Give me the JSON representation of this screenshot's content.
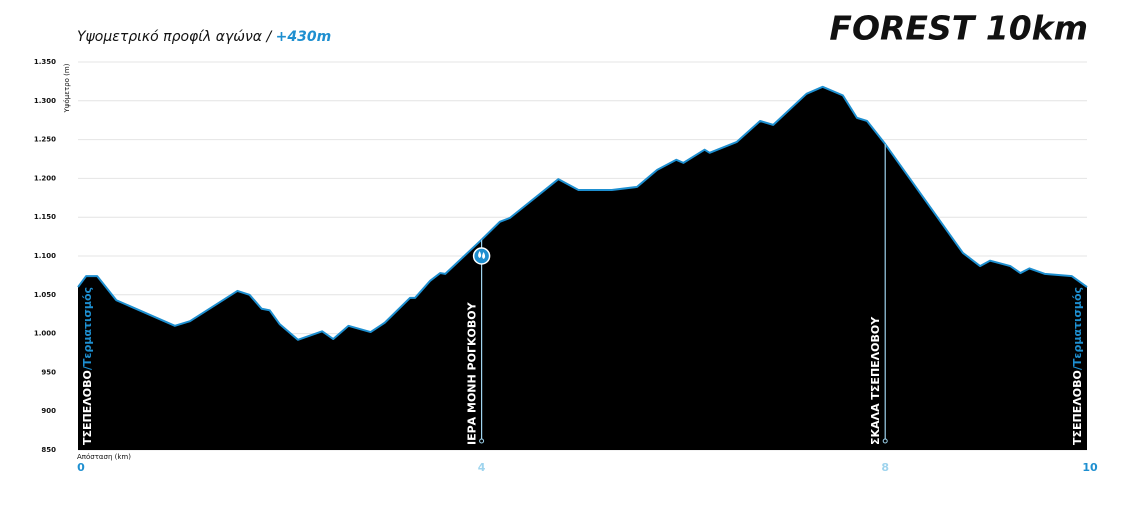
{
  "chart_data": {
    "type": "area",
    "title": "FOREST 10km",
    "subtitle": "Υψομετρικό προφίλ αγώνα / ",
    "subtitle_highlight": "+430m",
    "y_label": "Υψόμετρο (m)",
    "x_label": "Απόσταση (km)",
    "color": "#1e8fd0",
    "fill": "#000000",
    "grid": true,
    "xlim": [
      0,
      10
    ],
    "xticks": [
      0,
      4,
      8,
      10
    ],
    "ylim": [
      850,
      1350
    ],
    "yticks": [
      850,
      900,
      950,
      {
        "value": 1000,
        "label": "1.000"
      },
      {
        "value": 1050,
        "label": "1.050"
      },
      {
        "value": 1100,
        "label": "1.100"
      },
      {
        "value": 1150,
        "label": "1.150"
      },
      {
        "value": 1200,
        "label": "1.200"
      },
      {
        "value": 1250,
        "label": "1.250"
      },
      {
        "value": 1300,
        "label": "1.300"
      },
      {
        "value": 1350,
        "label": "1.350"
      }
    ],
    "x": [
      0,
      0.08,
      0.19,
      0.38,
      0.96,
      1.11,
      1.58,
      1.7,
      1.82,
      1.9,
      2.0,
      2.18,
      2.42,
      2.53,
      2.68,
      2.9,
      3.04,
      3.29,
      3.34,
      3.49,
      3.59,
      3.64,
      4.0,
      4.18,
      4.28,
      4.76,
      4.96,
      5.29,
      5.54,
      5.74,
      5.93,
      6.0,
      6.21,
      6.26,
      6.53,
      6.76,
      6.89,
      7.22,
      7.38,
      7.58,
      7.72,
      7.82,
      7.99,
      8.77,
      8.94,
      9.04,
      9.24,
      9.34,
      9.43,
      9.58,
      9.85,
      10
    ],
    "values": [
      1060,
      1074,
      1074,
      1043,
      1010,
      1016,
      1055,
      1050,
      1032,
      1030,
      1012,
      992,
      1003,
      993,
      1010,
      1002,
      1014,
      1046,
      1046,
      1068,
      1078,
      1077,
      1121,
      1144,
      1149,
      1199,
      1185,
      1185,
      1189,
      1211,
      1224,
      1220,
      1237,
      1233,
      1247,
      1274,
      1269,
      1309,
      1318,
      1307,
      1278,
      1274,
      1246,
      1104,
      1087,
      1094,
      1087,
      1078,
      1084,
      1077,
      1074,
      1060
    ],
    "annotations": [
      {
        "x": 0,
        "label": "ΤΣΕΠΕΛΟΒΟ",
        "sublabel": "/Τερματισμός"
      },
      {
        "x": 4,
        "label": "ΙΕΡΑ ΜΟΝΗ ΡΟΓΚΟΒΟΥ"
      },
      {
        "x": 8,
        "label": "ΣΚΑΛΑ ΤΣΕΠΕΛΟΒΟΥ"
      },
      {
        "x": 10,
        "label": "ΤΣΕΠΕΛΟΒΟ",
        "sublabel": "/Τερματισμός"
      }
    ]
  }
}
